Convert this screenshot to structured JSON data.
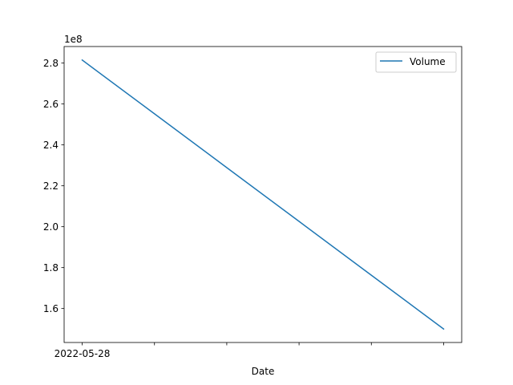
{
  "chart_data": {
    "type": "line",
    "title": "",
    "xlabel": "Date",
    "ylabel": "",
    "y_offset_label": "1e8",
    "x": [
      "2022-05-28",
      "",
      "",
      "",
      "",
      ""
    ],
    "x_ticks": [
      "2022-05-28",
      "",
      "",
      "",
      "",
      ""
    ],
    "series": [
      {
        "name": "Volume",
        "color": "#1f77b4",
        "values": [
          281500000,
          255200000,
          228900000,
          202600000,
          176300000,
          150000000
        ]
      }
    ],
    "y_ticks": [
      1.6,
      1.8,
      2.0,
      2.2,
      2.4,
      2.6,
      2.8
    ],
    "y_tick_labels": [
      "1.6",
      "1.8",
      "2.0",
      "2.2",
      "2.4",
      "2.6",
      "2.8"
    ],
    "y_tick_scale": 100000000,
    "ylim": [
      143400000,
      288100000
    ],
    "grid": false,
    "legend": "top-right"
  }
}
